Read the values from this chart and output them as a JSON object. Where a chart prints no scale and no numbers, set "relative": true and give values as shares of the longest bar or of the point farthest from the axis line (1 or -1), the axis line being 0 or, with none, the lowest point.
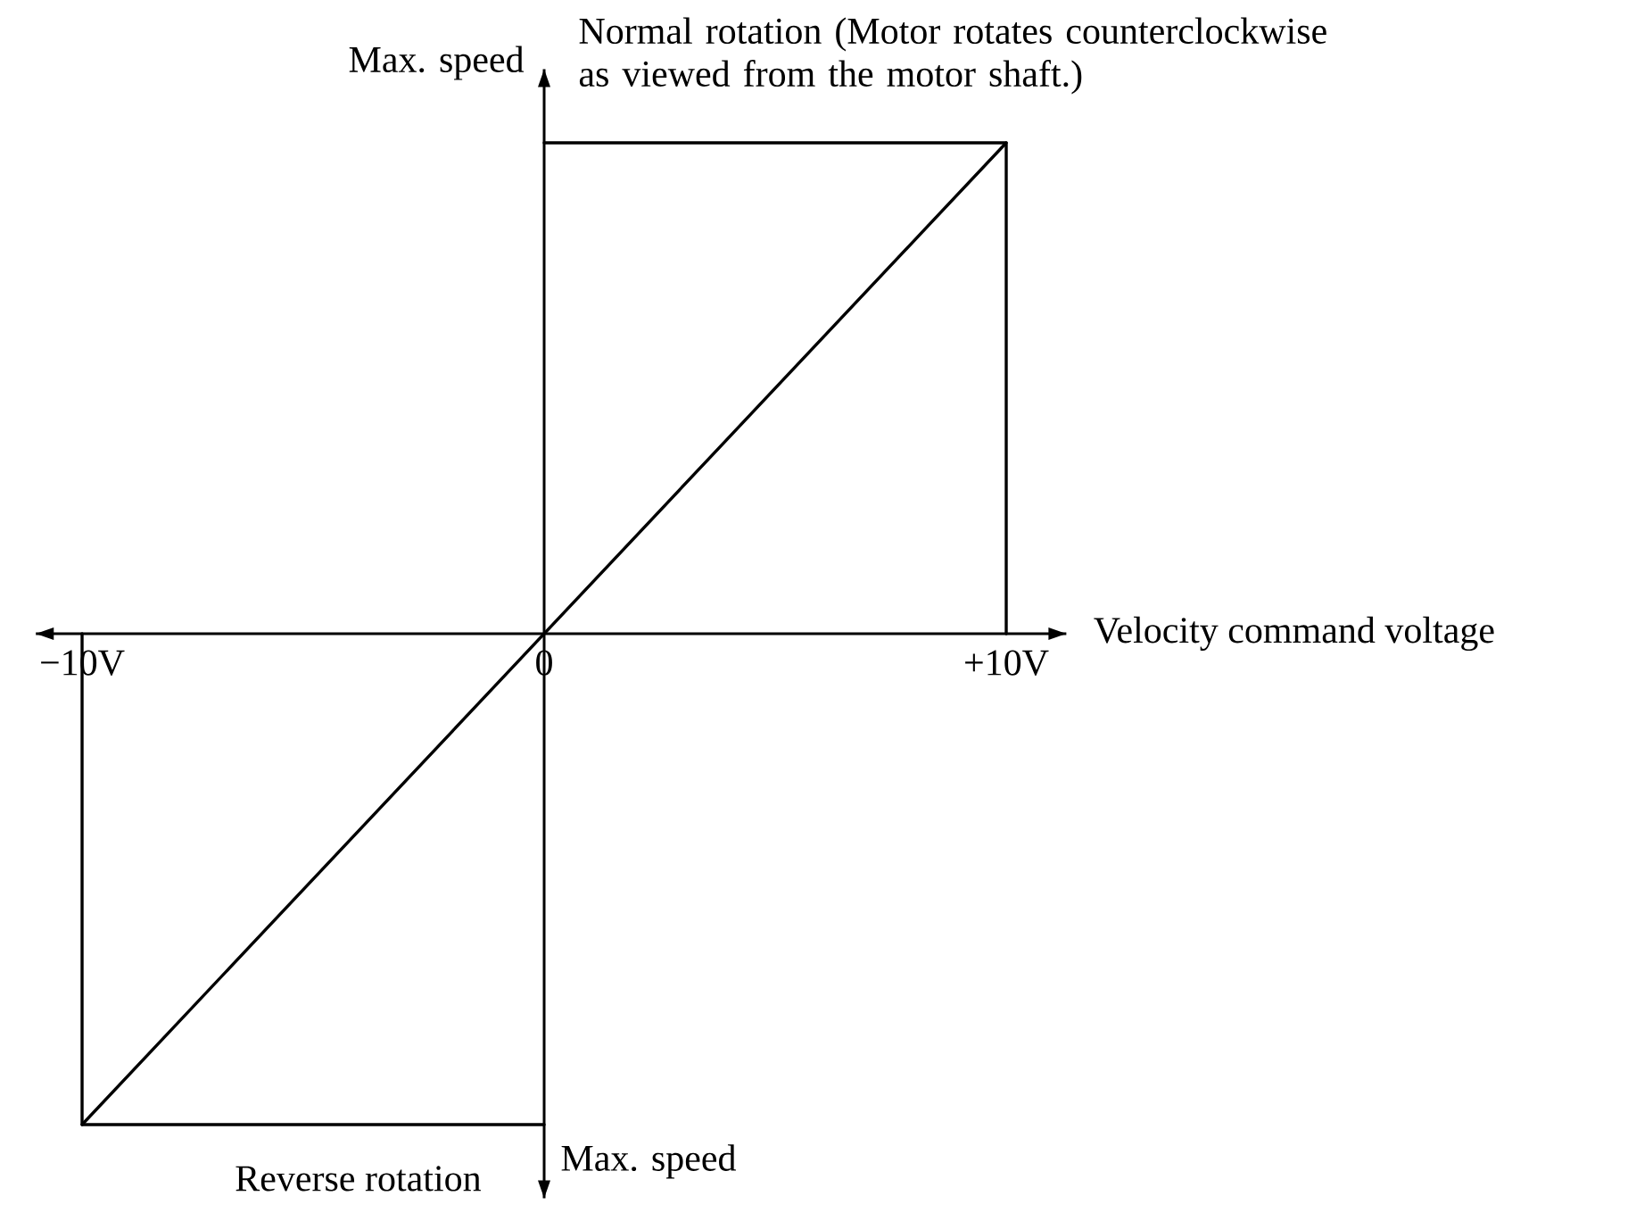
{
  "chart_data": {
    "type": "line",
    "xlabel": "Velocity command voltage",
    "relative": true,
    "marker": "none",
    "line_style": "solid",
    "xlim": [
      -11,
      11.3
    ],
    "xticks": [
      {
        "value": -10,
        "label": "−10V"
      },
      {
        "value": 0,
        "label": "0"
      },
      {
        "value": 10,
        "label": "+10V"
      }
    ],
    "series": [
      {
        "color": "#000000",
        "x": [
          -10,
          0,
          10
        ],
        "values": [
          -1,
          0,
          1
        ]
      },
      {
        "color": "#000000",
        "x": [
          0,
          10,
          10
        ],
        "values": [
          1,
          1,
          0
        ]
      },
      {
        "color": "#000000",
        "x": [
          -10,
          -10,
          0
        ],
        "values": [
          0,
          -1,
          -1
        ]
      }
    ],
    "annotations": [
      "Normal rotation (Motor rotates counterclockwise as viewed from the motor shaft.)",
      {
        "text": "Max. speed",
        "x": 0,
        "y": 1
      },
      {
        "text": "Max. speed",
        "x": 0,
        "y": -1
      },
      "Reverse rotation"
    ]
  }
}
